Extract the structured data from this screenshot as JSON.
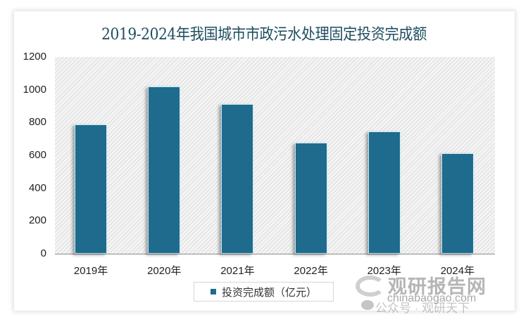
{
  "title": "2019-2024年我国城市市政污水处理固定投资完成额",
  "colors": {
    "bar": "#1f6b8e",
    "bar_border": "#c8eef5",
    "title": "#1f4e5f"
  },
  "y_axis": {
    "ticks": [
      "0",
      "200",
      "400",
      "600",
      "800",
      "1000",
      "1200"
    ]
  },
  "x_axis": {
    "ticks": [
      "2019年",
      "2020年",
      "2021年",
      "2022年",
      "2023年",
      "2024年"
    ]
  },
  "legend": {
    "label": "投资完成额（亿元）"
  },
  "watermark": {
    "brand": "观研报告网",
    "url": "chinabaogao.com",
    "wechat": "公众号 · 观研天下"
  },
  "chart_data": {
    "type": "bar",
    "title": "2019-2024年我国城市市政污水处理固定投资完成额",
    "categories": [
      "2019年",
      "2020年",
      "2021年",
      "2022年",
      "2023年",
      "2024年"
    ],
    "series": [
      {
        "name": "投资完成额（亿元）",
        "values": [
          789,
          1020,
          913,
          677,
          746,
          613
        ]
      }
    ],
    "xlabel": "",
    "ylabel": "",
    "ylim": [
      0,
      1200
    ],
    "yticks": [
      0,
      200,
      400,
      600,
      800,
      1000,
      1200
    ],
    "grid": false,
    "legend_position": "bottom"
  }
}
